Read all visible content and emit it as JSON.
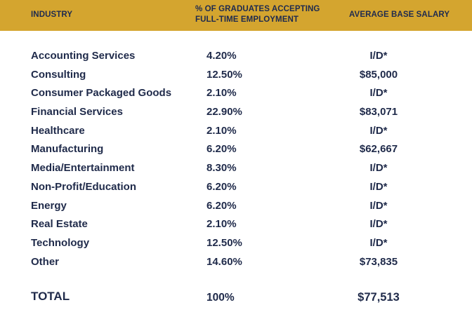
{
  "header": {
    "industry": "INDUSTRY",
    "pct_line1": "% OF GRADUATES ACCEPTING",
    "pct_line2": "FULL-TIME EMPLOYMENT",
    "salary": "AVERAGE BASE SALARY"
  },
  "rows": [
    {
      "industry": "Accounting Services",
      "pct": "4.20%",
      "salary": "I/D*"
    },
    {
      "industry": "Consulting",
      "pct": "12.50%",
      "salary": "$85,000"
    },
    {
      "industry": "Consumer Packaged Goods",
      "pct": "2.10%",
      "salary": "I/D*"
    },
    {
      "industry": "Financial Services",
      "pct": "22.90%",
      "salary": "$83,071"
    },
    {
      "industry": "Healthcare",
      "pct": "2.10%",
      "salary": "I/D*"
    },
    {
      "industry": "Manufacturing",
      "pct": "6.20%",
      "salary": "$62,667"
    },
    {
      "industry": "Media/Entertainment",
      "pct": "8.30%",
      "salary": "I/D*"
    },
    {
      "industry": "Non-Profit/Education",
      "pct": "6.20%",
      "salary": "I/D*"
    },
    {
      "industry": "Energy",
      "pct": "6.20%",
      "salary": "I/D*"
    },
    {
      "industry": "Real Estate",
      "pct": "2.10%",
      "salary": "I/D*"
    },
    {
      "industry": "Technology",
      "pct": "12.50%",
      "salary": "I/D*"
    },
    {
      "industry": "Other",
      "pct": "14.60%",
      "salary": "$73,835"
    }
  ],
  "total": {
    "label": "TOTAL",
    "pct": "100%",
    "salary": "$77,513"
  },
  "colors": {
    "header_bg": "#d4a52f",
    "text": "#1f2a4a"
  }
}
